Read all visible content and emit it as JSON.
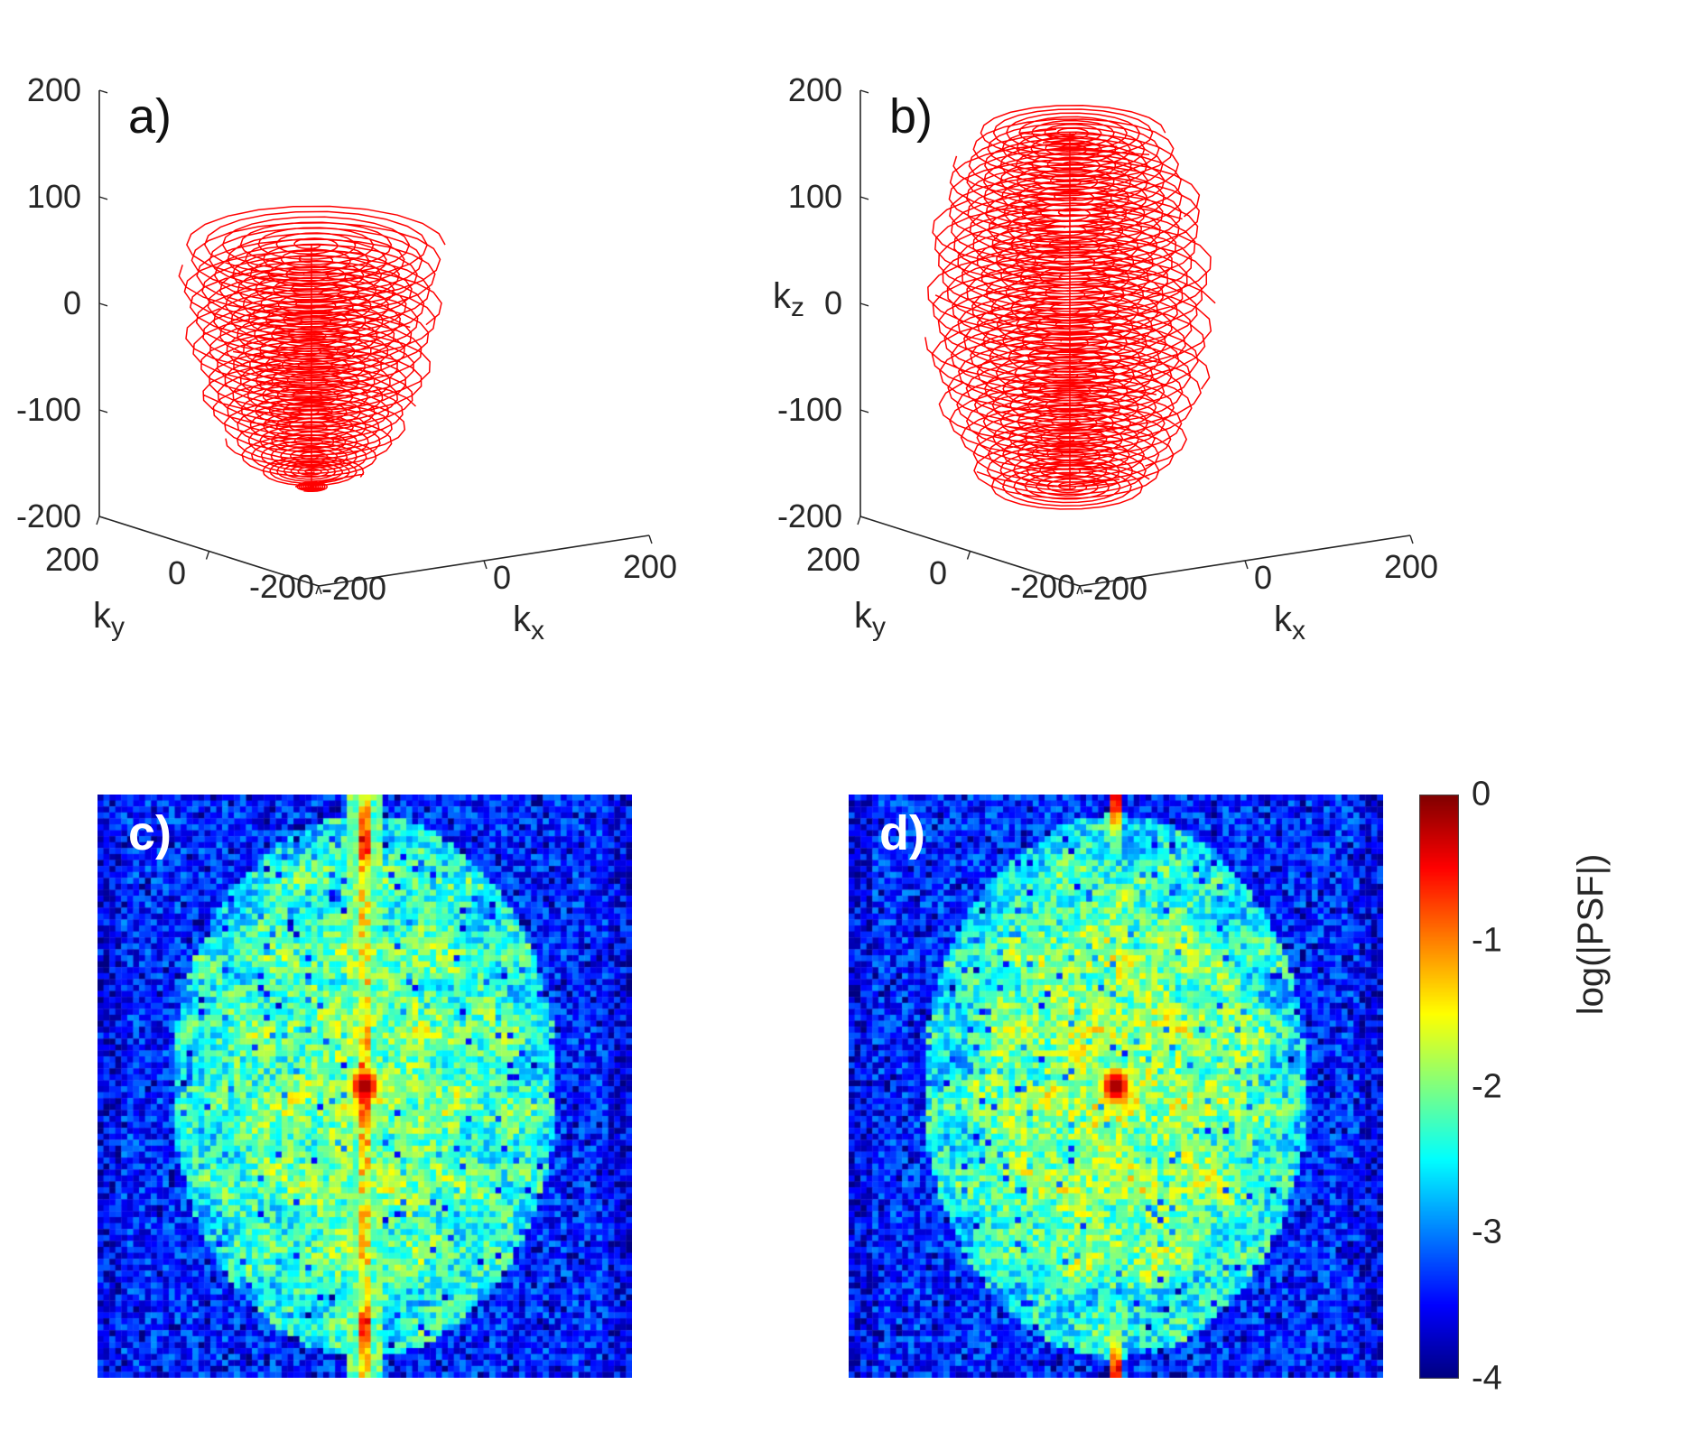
{
  "figure": {
    "type": "scientific-figure",
    "panel_count": 4,
    "trajectory_color": "#ff0000"
  },
  "panels": {
    "a": {
      "label": "a)"
    },
    "b": {
      "label": "b)"
    },
    "c": {
      "label": "c)"
    },
    "d": {
      "label": "d)"
    }
  },
  "axes3d": {
    "x": {
      "label_base": "k",
      "label_sub": "x",
      "ticks": [
        "-200",
        "0",
        "200"
      ]
    },
    "y": {
      "label_base": "k",
      "label_sub": "y",
      "ticks": [
        "200",
        "0",
        "-200"
      ]
    },
    "z": {
      "label_base": "k",
      "label_sub": "z",
      "ticks": [
        "200",
        "100",
        "0",
        "-100",
        "-200"
      ]
    }
  },
  "colorbar": {
    "label": "log(|PSF|)",
    "ticks": [
      "0",
      "-1",
      "-2",
      "-3",
      "-4"
    ],
    "colormap": "jet",
    "range": [
      -4,
      0
    ]
  },
  "chart_data": [
    {
      "id": "a",
      "type": "line",
      "title": "a)",
      "projection": "3d",
      "xlabel": "k_x",
      "ylabel": "k_y",
      "zlabel": "",
      "x_ticks": [
        -200,
        0,
        200
      ],
      "y_ticks": [
        200,
        0,
        -200
      ],
      "z_ticks": [
        200,
        100,
        0,
        -100,
        -200
      ],
      "x_range": [
        -200,
        200
      ],
      "y_range": [
        -200,
        200
      ],
      "z_range": [
        -200,
        200
      ],
      "series": [
        {
          "name": "k-space trajectory",
          "color": "#ff0000",
          "shape": "stack-of-spirals, dome-shaped envelope",
          "kz_planes_from": -170,
          "kz_planes_to": 60,
          "k_max": 170
        }
      ],
      "render": {
        "z_top": 55,
        "z_bottom": -172,
        "levels": 17,
        "turns": 7,
        "r_max": 148,
        "taper_power": 2.6,
        "squash": 0.3,
        "profile": "dome",
        "squiggle": false
      }
    },
    {
      "id": "b",
      "type": "line",
      "title": "b)",
      "projection": "3d",
      "xlabel": "k_x",
      "ylabel": "k_y",
      "zlabel": "k_z",
      "x_ticks": [
        -200,
        0,
        200
      ],
      "y_ticks": [
        200,
        0,
        -200
      ],
      "z_ticks": [
        200,
        100,
        0,
        -100,
        -200
      ],
      "x_range": [
        -200,
        200
      ],
      "y_range": [
        -200,
        200
      ],
      "z_range": [
        -200,
        200
      ],
      "series": [
        {
          "name": "k-space trajectory",
          "color": "#ff0000",
          "shape": "stack-of-spirals, ellipsoidal envelope",
          "kz_planes_from": -170,
          "kz_planes_to": 160,
          "k_max": 170
        }
      ],
      "render": {
        "z_top": 160,
        "z_bottom": -172,
        "levels": 23,
        "turns": 7,
        "r_max": 163,
        "taper_power": 2.2,
        "squash": 0.3,
        "profile": "sphere",
        "squiggle": true
      }
    },
    {
      "id": "c",
      "type": "heatmap",
      "title": "c)",
      "colormap": "jet",
      "value_label": "log(|PSF|)",
      "value_range": [
        -4,
        0
      ],
      "render": {
        "cols": 90,
        "rows": 98,
        "seed": 1337,
        "background": -3.35,
        "interior": -2.5,
        "noise": 0.5,
        "streak": "full",
        "cross_arms": true,
        "inner_boost": 0
      }
    },
    {
      "id": "d",
      "type": "heatmap",
      "title": "d)",
      "colormap": "jet",
      "value_label": "log(|PSF|)",
      "value_range": [
        -4,
        0
      ],
      "render": {
        "cols": 90,
        "rows": 98,
        "seed": 4242,
        "background": -3.35,
        "interior": -2.55,
        "noise": 0.5,
        "streak": "edges",
        "cross_arms": false,
        "inner_boost": 0.2
      }
    }
  ]
}
